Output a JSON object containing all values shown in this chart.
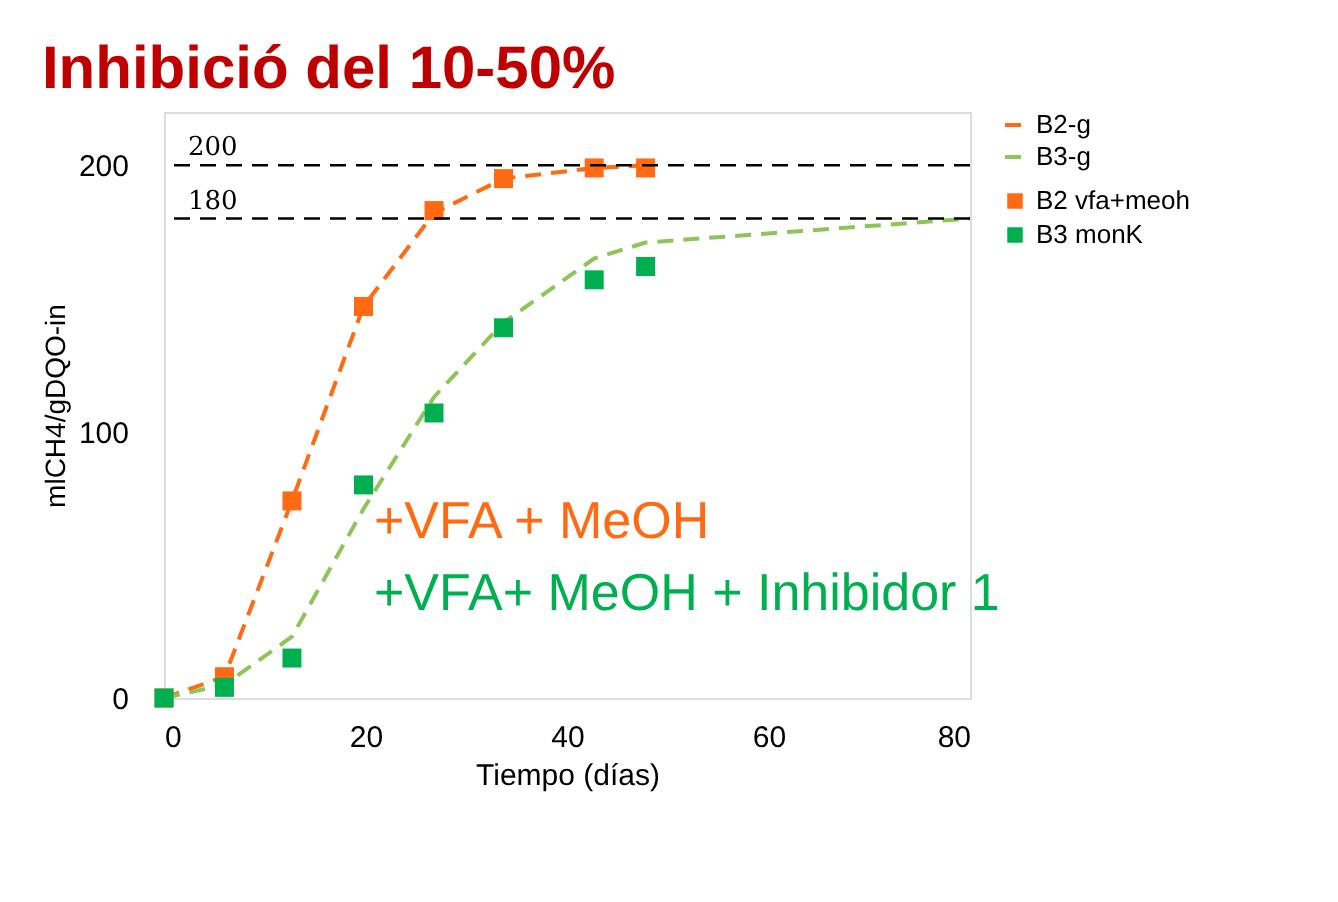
{
  "chart_data": {
    "type": "scatter",
    "title": "Inhibició del 10-50%",
    "xlabel": "Tiempo (días)",
    "ylabel": "mlCH4/gDQO-in",
    "xlim": [
      0,
      80
    ],
    "xticks": [
      0,
      20,
      40,
      60,
      80
    ],
    "ylim": [
      0,
      220
    ],
    "yticks": [
      0,
      100,
      200
    ],
    "grid": false,
    "legend": "right",
    "series": [
      {
        "name": "B2-g",
        "type": "line",
        "line_style": "dashed",
        "color": "#ff6a13",
        "x": [
          0,
          6,
          12.7,
          19.8,
          26.8,
          33.7,
          42.7,
          47.8
        ],
        "values": [
          0,
          8,
          74,
          147,
          182,
          195,
          199,
          200
        ]
      },
      {
        "name": "B2 vfa+meoh",
        "marker": "square",
        "color": "#ff6a13",
        "x": [
          0,
          6,
          12.7,
          19.8,
          26.8,
          33.7,
          42.7,
          47.8
        ],
        "values": [
          0,
          8,
          74,
          147,
          183,
          195,
          199,
          199
        ]
      },
      {
        "name": "B3-g",
        "type": "line",
        "line_style": "dashed",
        "color": "#8fc45a",
        "x": [
          0,
          6,
          12.7,
          19.8,
          26.8,
          33.7,
          42.7,
          47.8,
          80
        ],
        "values": [
          0,
          5,
          23,
          71,
          113,
          141,
          165,
          171,
          180
        ]
      },
      {
        "name": "B3 monK",
        "marker": "square",
        "color": "#00b050",
        "x": [
          0,
          6,
          12.7,
          19.8,
          26.8,
          33.7,
          42.7,
          47.8
        ],
        "values": [
          0,
          4,
          15,
          80,
          107,
          139,
          157,
          162
        ]
      }
    ],
    "ref_lines": [
      {
        "axis": "y",
        "value": 200,
        "label": "200",
        "color": "#000000",
        "line_style": "dashed"
      },
      {
        "axis": "y",
        "value": 180,
        "label": "180",
        "color": "#000000",
        "line_style": "dashed"
      }
    ],
    "annotations": [
      "+VFA + MeOH",
      "+VFA+ MeOH + Inhibidor 1"
    ]
  }
}
